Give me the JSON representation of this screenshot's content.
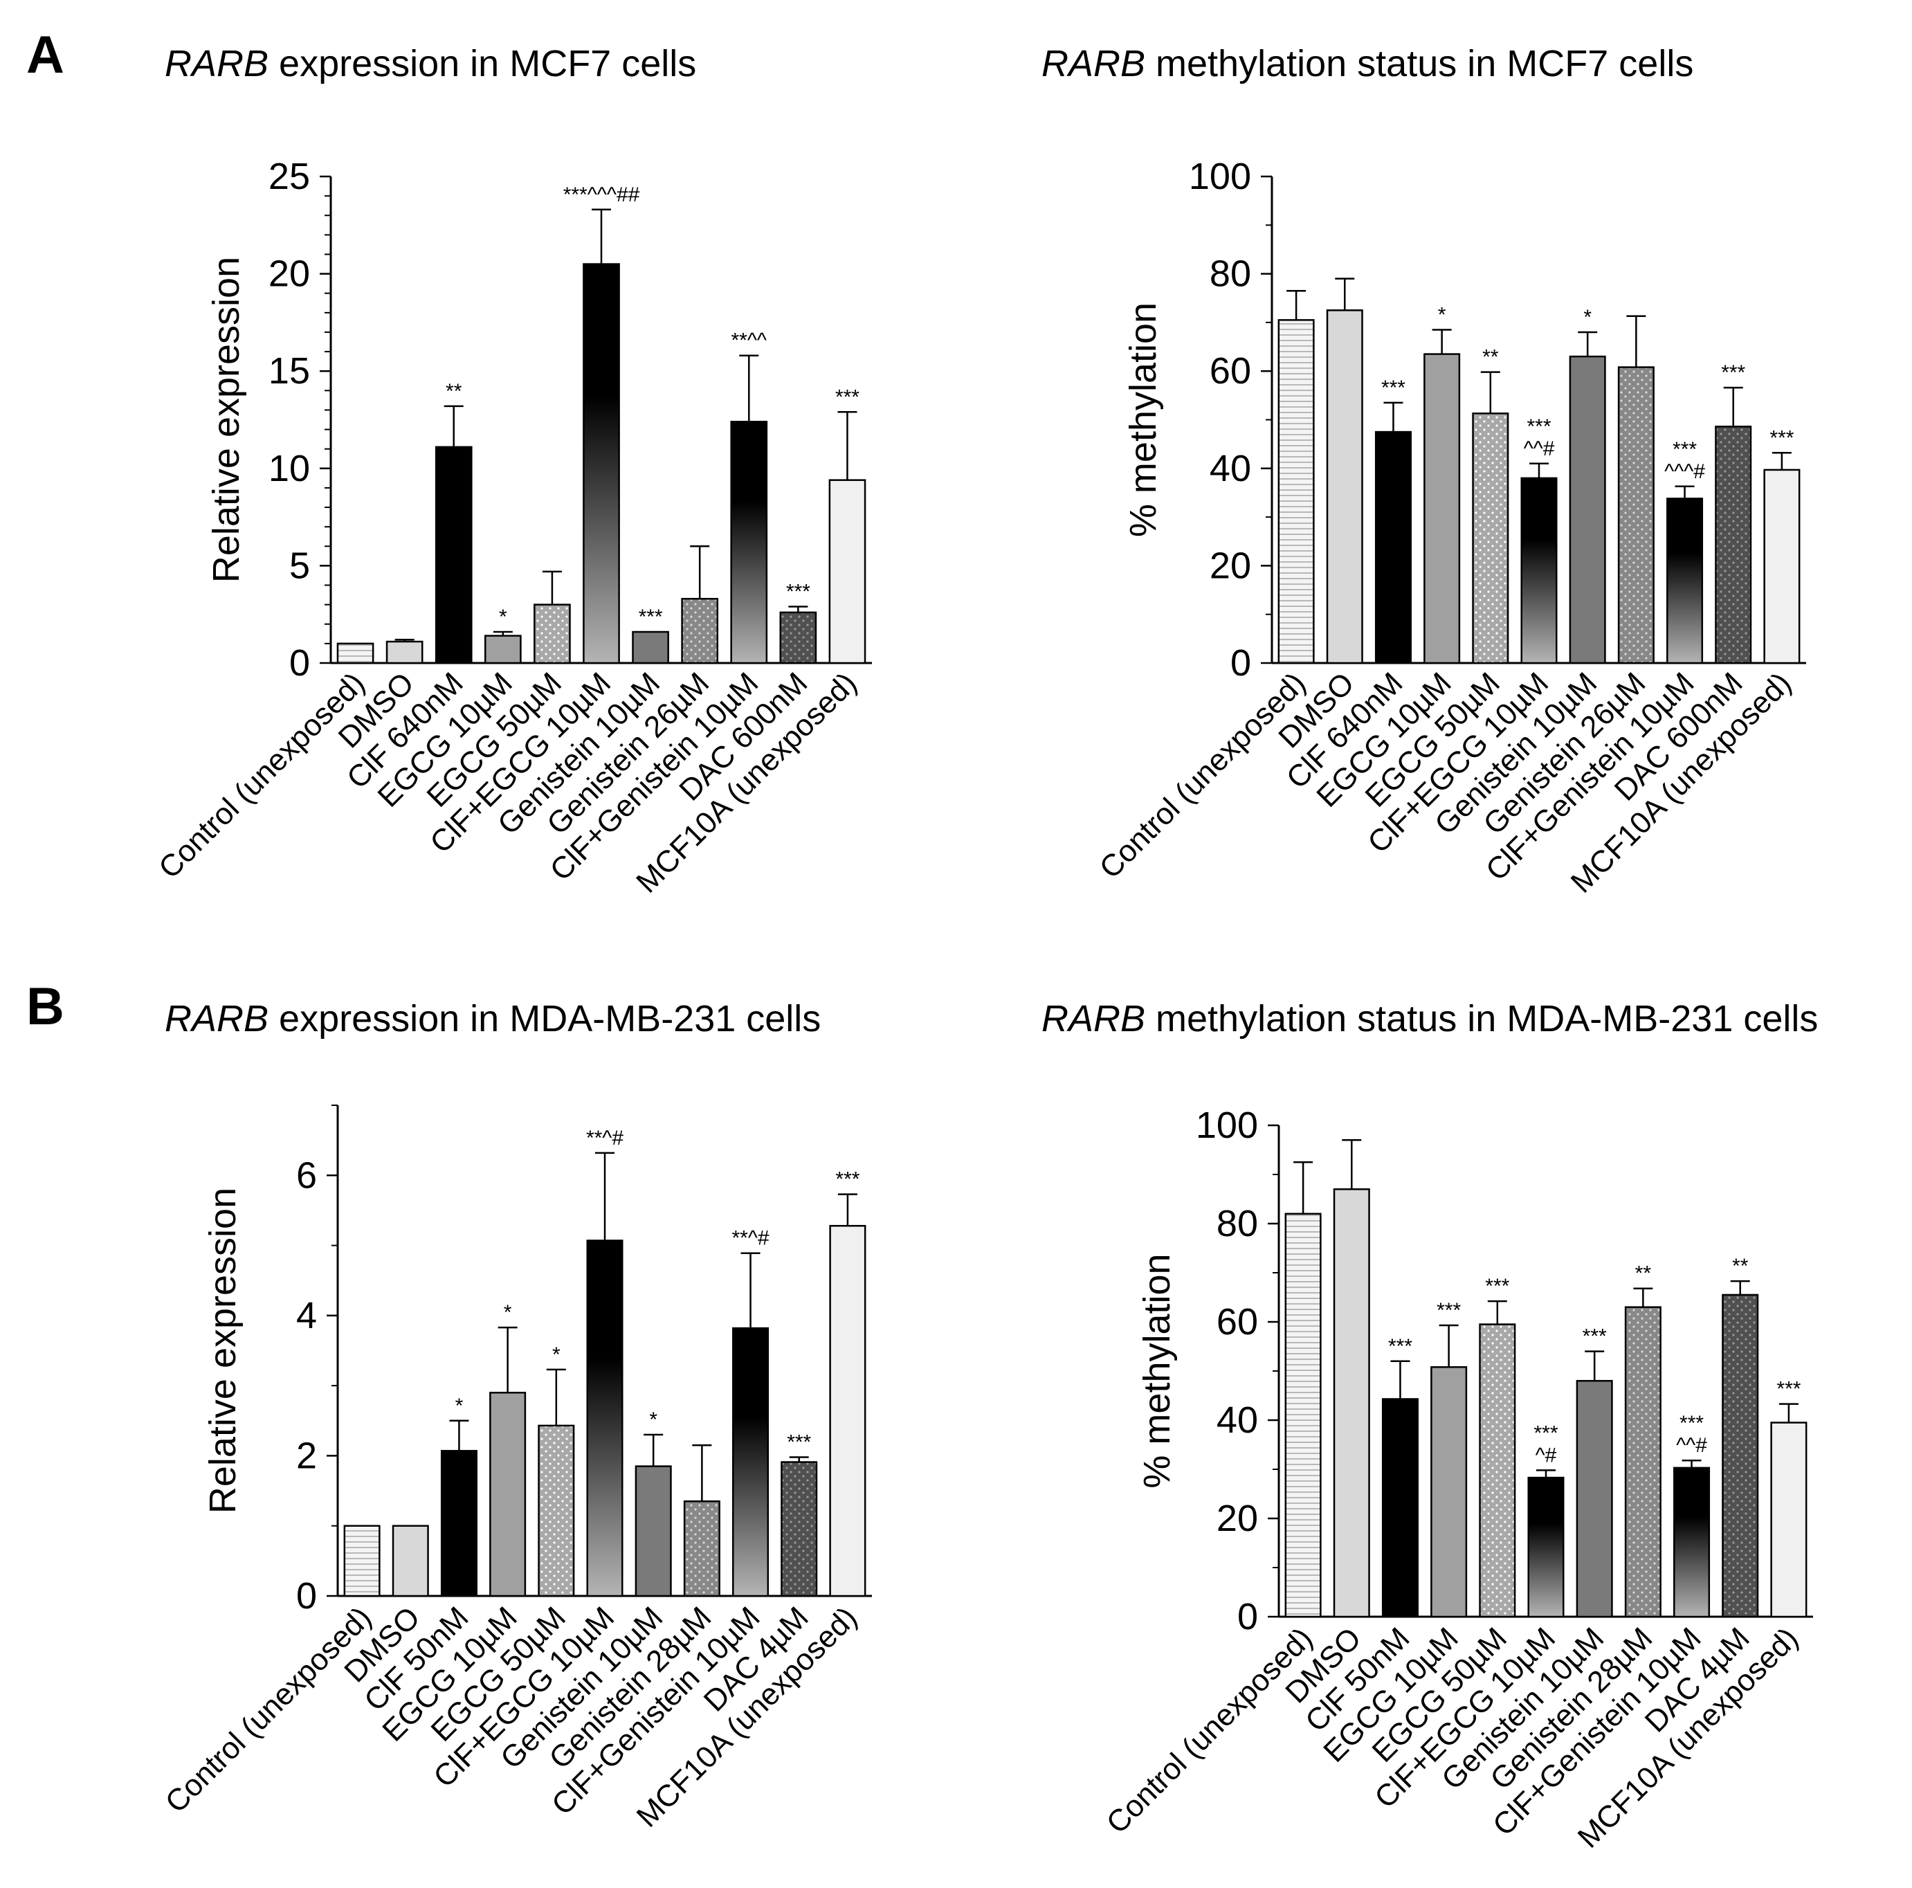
{
  "panels": [
    {
      "letter": "A"
    },
    {
      "letter": "B"
    }
  ],
  "chart_data": [
    {
      "type": "bar",
      "title_gene": "RARB",
      "title_rest": " expression in MCF7 cells",
      "ylabel": "Relative expression",
      "ylim": [
        0,
        25
      ],
      "major_ticks": [
        0,
        5,
        10,
        15,
        20,
        25
      ],
      "minor_step": 1,
      "categories": [
        "Control (unexposed)",
        "DMSO",
        "ClF 640nM",
        "EGCG 10µM",
        "EGCG 50µM",
        "ClF+EGCG 10µM",
        "Genistein 10µM",
        "Genistein 26µM",
        "ClF+Genistein 10µM",
        "DAC 600nM",
        "MCF10A (unexposed)"
      ],
      "values": [
        1.0,
        1.1,
        11.1,
        1.4,
        3.0,
        20.5,
        1.6,
        3.3,
        12.4,
        2.6,
        9.4
      ],
      "errors": [
        0,
        0.1,
        2.1,
        0.2,
        1.7,
        2.8,
        0,
        2.7,
        3.4,
        0.3,
        3.5
      ],
      "annotations": [
        "",
        "",
        "**",
        "*",
        "",
        "***^^^##",
        "***",
        "",
        "**^^",
        "***",
        "***"
      ],
      "fills": [
        "stripes",
        "light",
        "black",
        "mid",
        "dots-light",
        "grad",
        "darkmid",
        "dots-mid",
        "grad",
        "dots-dark",
        "vlight"
      ]
    },
    {
      "type": "bar",
      "title_gene": "RARB",
      "title_rest": " methylation status in MCF7 cells",
      "ylabel": "% methylation",
      "ylim": [
        0,
        100
      ],
      "major_ticks": [
        0,
        20,
        40,
        60,
        80,
        100
      ],
      "minor_step": 10,
      "categories": [
        "Control (unexposed)",
        "DMSO",
        "ClF 640nM",
        "EGCG 10µM",
        "EGCG 50µM",
        "ClF+EGCG 10µM",
        "Genistein 10µM",
        "Genistein 26µM",
        "ClF+Genistein 10µM",
        "DAC 600nM",
        "MCF10A (unexposed)"
      ],
      "values": [
        70.5,
        72.5,
        47.5,
        63.5,
        51.3,
        38.0,
        63.0,
        60.8,
        33.8,
        48.6,
        39.7
      ],
      "errors": [
        6.0,
        6.5,
        6.0,
        5.0,
        8.5,
        3.0,
        5.0,
        10.5,
        2.5,
        8.0,
        3.5
      ],
      "annotations": [
        "",
        "",
        "***",
        "*",
        "**",
        "***|^^#",
        "*",
        "",
        "***|^^^#",
        "***",
        "***"
      ],
      "fills": [
        "stripes",
        "light",
        "black",
        "mid",
        "dots-light",
        "grad",
        "darkmid",
        "dots-mid",
        "grad",
        "dots-dark",
        "vlight"
      ]
    },
    {
      "type": "bar",
      "title_gene": "RARB",
      "title_rest": " expression in MDA-MB-231 cells",
      "ylabel": "Relative expression",
      "ylim": [
        0,
        7
      ],
      "major_ticks": [
        0,
        2,
        4,
        6
      ],
      "minor_step": 1,
      "categories": [
        "Control (unexposed)",
        "DMSO",
        "ClF 50nM",
        "EGCG 10µM",
        "EGCG 50µM",
        "ClF+EGCG 10µM",
        "Genistein 10µM",
        "Genistein 28µM",
        "ClF+Genistein 10µM",
        "DAC 4µM",
        "MCF10A (unexposed)"
      ],
      "values": [
        1.0,
        1.0,
        2.07,
        2.9,
        2.43,
        5.07,
        1.85,
        1.35,
        3.82,
        1.91,
        5.28
      ],
      "errors": [
        0,
        0,
        0.43,
        0.93,
        0.8,
        1.25,
        0.45,
        0.8,
        1.07,
        0.07,
        0.45
      ],
      "annotations": [
        "",
        "",
        "*",
        "*",
        "*",
        "**^#",
        "*",
        "",
        "**^#",
        "***",
        "***"
      ],
      "fills": [
        "stripes",
        "light",
        "black",
        "mid",
        "dots-light",
        "grad",
        "darkmid",
        "dots-mid",
        "grad",
        "dots-dark",
        "vlight"
      ]
    },
    {
      "type": "bar",
      "title_gene": "RARB",
      "title_rest": " methylation status in MDA-MB-231 cells",
      "ylabel": "% methylation",
      "ylim": [
        0,
        100
      ],
      "major_ticks": [
        0,
        20,
        40,
        60,
        80,
        100
      ],
      "minor_step": 10,
      "categories": [
        "Control (unexposed)",
        "DMSO",
        "ClF 50nM",
        "EGCG 10µM",
        "EGCG 50µM",
        "ClF+EGCG 10µM",
        "Genistein 10µM",
        "Genistein 28µM",
        "ClF+Genistein 10µM",
        "DAC 4µM",
        "MCF10A (unexposed)"
      ],
      "values": [
        82.0,
        87.0,
        44.3,
        50.8,
        59.5,
        28.3,
        48.0,
        63.0,
        30.3,
        65.5,
        39.5
      ],
      "errors": [
        10.5,
        10.0,
        7.7,
        8.5,
        4.7,
        1.5,
        6.0,
        3.8,
        1.5,
        2.8,
        3.8
      ],
      "annotations": [
        "",
        "",
        "***",
        "***",
        "***",
        "***|^#",
        "***",
        "**",
        "***|^^#",
        "**",
        "***"
      ],
      "fills": [
        "stripes",
        "light",
        "black",
        "mid",
        "dots-light",
        "grad",
        "darkmid",
        "dots-mid",
        "grad",
        "dots-dark",
        "vlight"
      ]
    }
  ]
}
